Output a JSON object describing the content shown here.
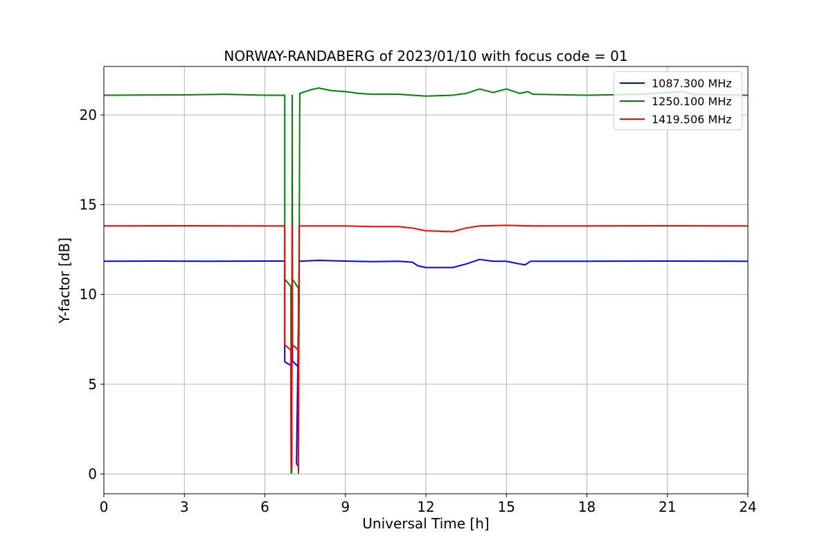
{
  "chart_data": {
    "type": "line",
    "title": "NORWAY-RANDABERG of 2023/01/10 with focus code = 01",
    "xlabel": "Universal Time [h]",
    "ylabel": "Y-factor [dB]",
    "xlim": [
      0,
      24
    ],
    "ylim": [
      -1.1,
      22.7
    ],
    "xticks": [
      0,
      3,
      6,
      9,
      12,
      15,
      18,
      21,
      24
    ],
    "yticks": [
      0,
      5,
      10,
      15,
      20
    ],
    "grid": true,
    "legend_position": "top-right",
    "series": [
      {
        "name": "1087.300 MHz",
        "color": "#0000ff",
        "points": [
          [
            0,
            11.85
          ],
          [
            2,
            11.86
          ],
          [
            4,
            11.85
          ],
          [
            6,
            11.86
          ],
          [
            6.74,
            11.86
          ],
          [
            6.74,
            6.25
          ],
          [
            6.97,
            6.05
          ],
          [
            6.98,
            0.1
          ],
          [
            7.0,
            0.3
          ],
          [
            7.02,
            11.86
          ],
          [
            7.03,
            6.3
          ],
          [
            7.25,
            5.95
          ],
          [
            7.25,
            0.4
          ],
          [
            7.18,
            0.6
          ],
          [
            7.28,
            11.85
          ],
          [
            8,
            11.9
          ],
          [
            9,
            11.86
          ],
          [
            10,
            11.83
          ],
          [
            11,
            11.85
          ],
          [
            11.5,
            11.8
          ],
          [
            11.7,
            11.6
          ],
          [
            12,
            11.5
          ],
          [
            13,
            11.5
          ],
          [
            13.5,
            11.7
          ],
          [
            14,
            11.95
          ],
          [
            14.5,
            11.85
          ],
          [
            15,
            11.85
          ],
          [
            15.5,
            11.7
          ],
          [
            15.7,
            11.65
          ],
          [
            15.9,
            11.85
          ],
          [
            18,
            11.85
          ],
          [
            21,
            11.86
          ],
          [
            24,
            11.85
          ]
        ]
      },
      {
        "name": "1250.100 MHz",
        "color": "#008000",
        "points": [
          [
            0,
            21.1
          ],
          [
            3,
            21.12
          ],
          [
            4.5,
            21.15
          ],
          [
            6,
            21.1
          ],
          [
            6.74,
            21.1
          ],
          [
            6.74,
            10.85
          ],
          [
            6.97,
            10.45
          ],
          [
            6.98,
            0.05
          ],
          [
            7.0,
            0.1
          ],
          [
            7.02,
            21.1
          ],
          [
            7.03,
            10.85
          ],
          [
            7.25,
            10.35
          ],
          [
            7.25,
            0.05
          ],
          [
            7.3,
            21.2
          ],
          [
            7.7,
            21.4
          ],
          [
            8,
            21.5
          ],
          [
            8.5,
            21.35
          ],
          [
            9,
            21.3
          ],
          [
            9.5,
            21.2
          ],
          [
            10,
            21.15
          ],
          [
            11,
            21.15
          ],
          [
            12,
            21.05
          ],
          [
            13,
            21.1
          ],
          [
            13.5,
            21.2
          ],
          [
            14,
            21.45
          ],
          [
            14.5,
            21.25
          ],
          [
            15,
            21.45
          ],
          [
            15.5,
            21.2
          ],
          [
            15.8,
            21.3
          ],
          [
            16,
            21.15
          ],
          [
            18,
            21.1
          ],
          [
            20,
            21.15
          ],
          [
            21,
            21.25
          ],
          [
            21.5,
            21.3
          ],
          [
            22,
            21.15
          ],
          [
            24,
            21.1
          ]
        ]
      },
      {
        "name": "1419.506 MHz",
        "color": "#ff0000",
        "points": [
          [
            0,
            13.82
          ],
          [
            3,
            13.83
          ],
          [
            6,
            13.82
          ],
          [
            6.74,
            13.82
          ],
          [
            6.74,
            7.2
          ],
          [
            6.97,
            6.9
          ],
          [
            6.98,
            0.3
          ],
          [
            7.0,
            0.5
          ],
          [
            7.02,
            13.82
          ],
          [
            7.03,
            7.2
          ],
          [
            7.25,
            6.9
          ],
          [
            7.25,
            0.2
          ],
          [
            7.28,
            13.82
          ],
          [
            9,
            13.82
          ],
          [
            10,
            13.78
          ],
          [
            11,
            13.78
          ],
          [
            11.5,
            13.7
          ],
          [
            12,
            13.55
          ],
          [
            13,
            13.5
          ],
          [
            13.5,
            13.7
          ],
          [
            14,
            13.82
          ],
          [
            15,
            13.85
          ],
          [
            16,
            13.82
          ],
          [
            18,
            13.82
          ],
          [
            21,
            13.83
          ],
          [
            24,
            13.82
          ]
        ]
      }
    ]
  }
}
